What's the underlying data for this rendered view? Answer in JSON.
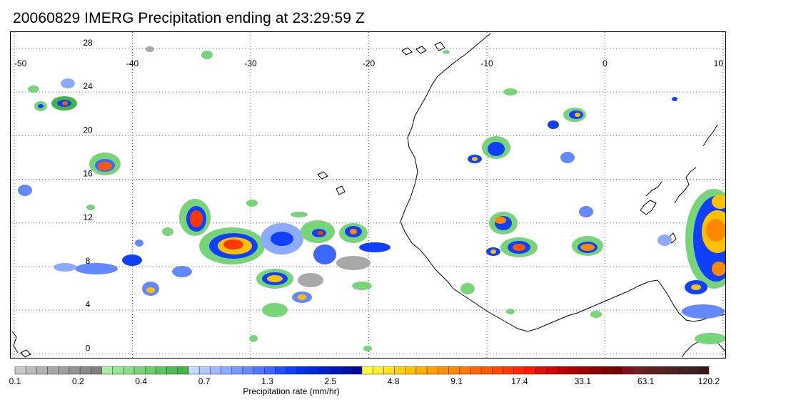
{
  "title": "20060829 IMERG Precipitation ending at 23:29:59 Z",
  "map": {
    "lon_labels": [
      "-50",
      "-40",
      "-30",
      "-20",
      "-10",
      "0",
      "10"
    ],
    "lat_labels": [
      "28",
      "24",
      "20",
      "16",
      "12",
      "8",
      "4",
      "0"
    ],
    "lon_values": [
      -50,
      -40,
      -30,
      -20,
      -10,
      0,
      10
    ],
    "lat_values": [
      28,
      24,
      20,
      16,
      12,
      8,
      4,
      0
    ],
    "lon_range": [
      -50,
      10
    ],
    "lat_range": [
      -0.5,
      29.5
    ],
    "grid": "dotted",
    "coastline": "West Africa"
  },
  "colorbar": {
    "title": "Precipitation rate (mm/hr)",
    "tick_labels": [
      "0.1",
      "0.2",
      "0.4",
      "0.7",
      "1.3",
      "2.5",
      "4.8",
      "9.1",
      "17.4",
      "33.1",
      "63.1",
      "120.2"
    ],
    "colors": [
      "#c8c8c8",
      "#bcbcbc",
      "#b2b2b2",
      "#a8a8a8",
      "#9e9e9e",
      "#949494",
      "#8a8a8a",
      "#808080",
      "#a8eca8",
      "#98e498",
      "#88dc88",
      "#78d478",
      "#6acc6a",
      "#5cc45c",
      "#50bc50",
      "#44b444",
      "#c8d8ff",
      "#b4c8ff",
      "#a0b8ff",
      "#8caaff",
      "#7898ff",
      "#6488ff",
      "#5078ff",
      "#3c68ff",
      "#2050ff",
      "#1040ff",
      "#0030f0",
      "#0028e0",
      "#0020d0",
      "#0018c0",
      "#0010b0",
      "#0008a0",
      "#ffff40",
      "#ffee30",
      "#ffe020",
      "#ffd010",
      "#ffc000",
      "#ffb000",
      "#ffa000",
      "#ff9000",
      "#ff8800",
      "#ff7800",
      "#ff6800",
      "#ff5800",
      "#ff4800",
      "#ff3800",
      "#ff2800",
      "#ff1800",
      "#e01010",
      "#d00808",
      "#c00000",
      "#b00000",
      "#a00000",
      "#900000",
      "#800000",
      "#780000",
      "#801020",
      "#702020",
      "#602020",
      "#582020",
      "#502020",
      "#482020",
      "#402020",
      "#381818"
    ]
  }
}
